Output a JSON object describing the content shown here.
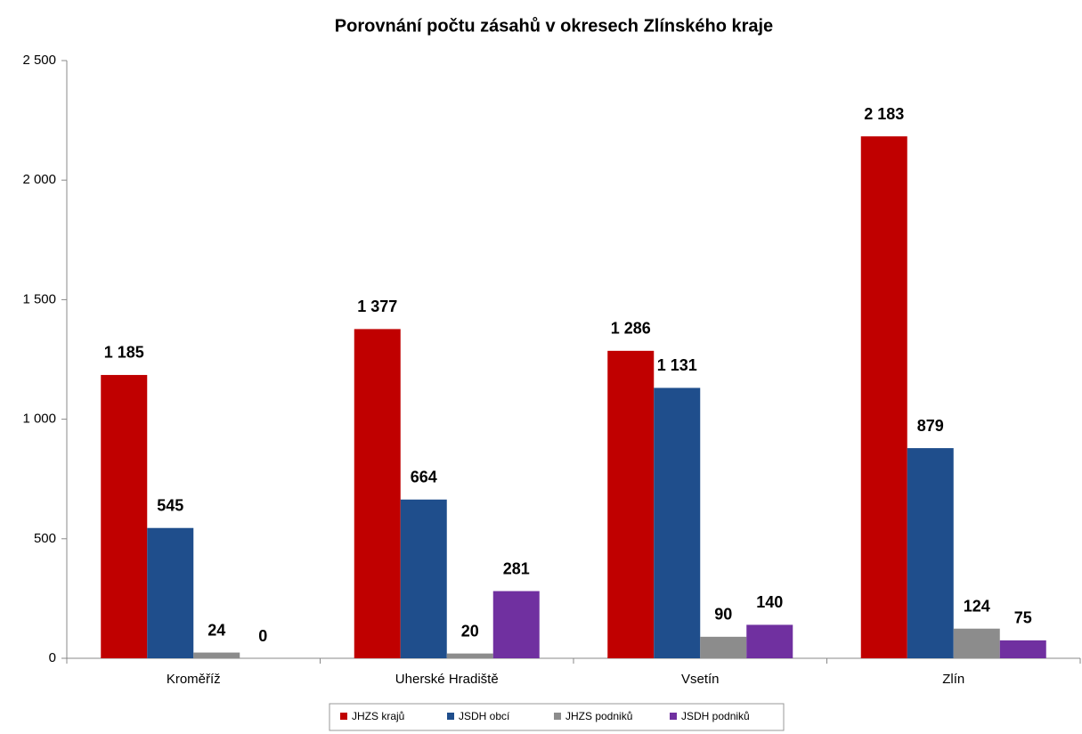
{
  "chart_data": {
    "type": "bar",
    "title": "Porovnání počtu zásahů v okresech Zlínského kraje",
    "categories": [
      "Kroměříž",
      "Uherské Hradiště",
      "Vsetín",
      "Zlín"
    ],
    "series": [
      {
        "name": "JHZS krajů",
        "color": "#c00000",
        "values": [
          1185,
          1377,
          1286,
          2183
        ],
        "value_labels": [
          "1 185",
          "1 377",
          "1 286",
          "2 183"
        ]
      },
      {
        "name": "JSDH obcí",
        "color": "#1f4e8c",
        "values": [
          545,
          664,
          1131,
          879
        ],
        "value_labels": [
          "545",
          "664",
          "1 131",
          "879"
        ]
      },
      {
        "name": "JHZS podniků",
        "color": "#8c8c8c",
        "values": [
          24,
          20,
          90,
          124
        ],
        "value_labels": [
          "24",
          "20",
          "90",
          "124"
        ]
      },
      {
        "name": "JSDH podniků",
        "color": "#7030a0",
        "values": [
          0,
          281,
          140,
          75
        ],
        "value_labels": [
          "0",
          "281",
          "140",
          "75"
        ]
      }
    ],
    "ylim": [
      0,
      2500
    ],
    "yticks": [
      0,
      500,
      {
        "value": 1000,
        "label": "1 000"
      },
      {
        "value": 1500,
        "label": "1 500"
      },
      {
        "value": 2000,
        "label": "2 000"
      },
      {
        "value": 2500,
        "label": "2 500"
      }
    ],
    "grid": false,
    "legend": "bottom"
  }
}
